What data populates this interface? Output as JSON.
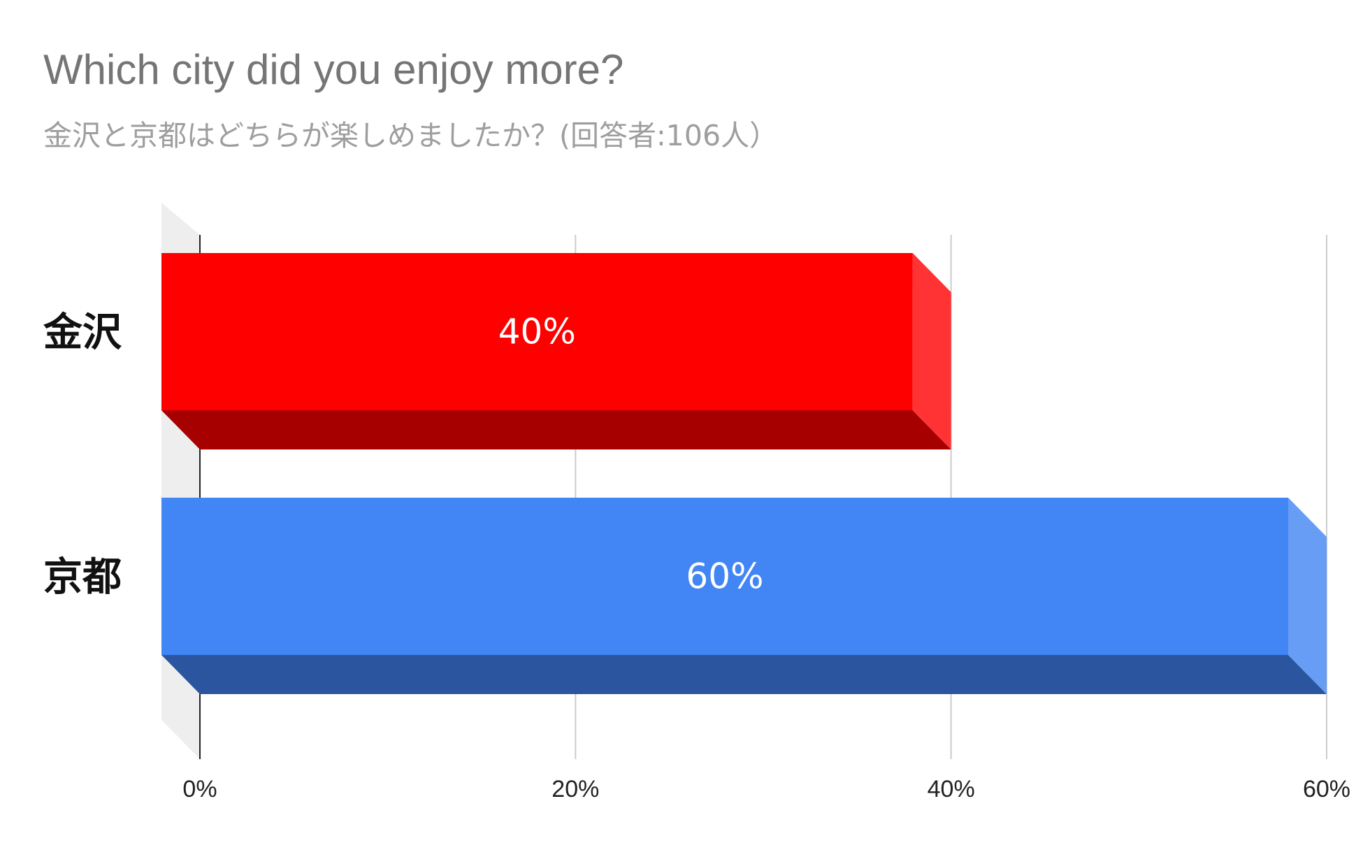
{
  "chart_data": {
    "type": "bar",
    "orientation": "horizontal",
    "style": "3d",
    "title": "Which city did you enjoy more?",
    "subtitle": "金沢と京都はどちらが楽しめましたか？(回答者:106人）",
    "categories": [
      "金沢",
      "京都"
    ],
    "values": [
      40,
      60
    ],
    "data_labels": [
      "40%",
      "60%"
    ],
    "colors": [
      "#ff0000",
      "#4285f4"
    ],
    "xlim": [
      0,
      60
    ],
    "x_ticks": [
      0,
      20,
      40,
      60
    ],
    "x_tick_labels": [
      "0%",
      "20%",
      "40%",
      "60%"
    ],
    "grid": true,
    "xlabel": "",
    "ylabel": ""
  }
}
